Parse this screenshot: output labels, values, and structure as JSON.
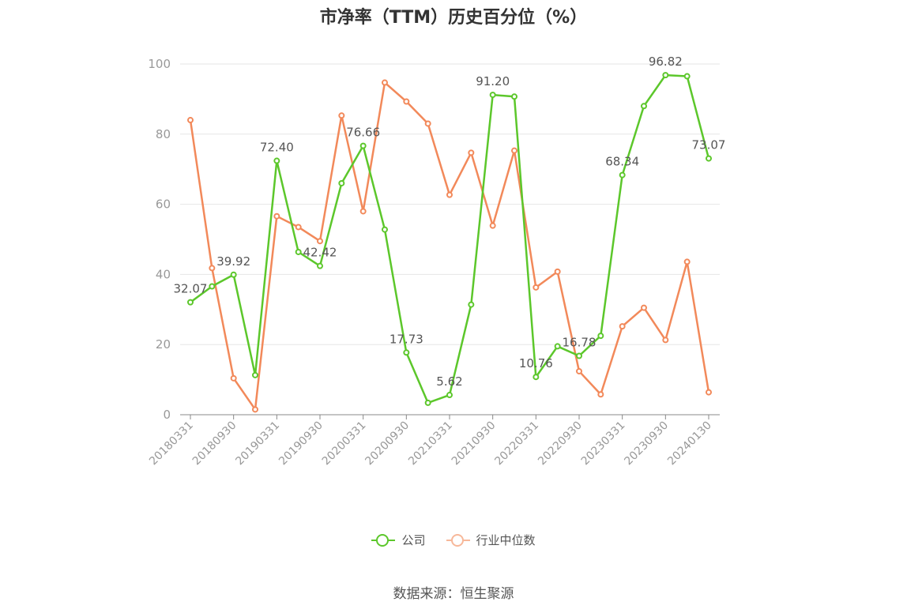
{
  "title": "市净率（TTM）历史百分位（%）",
  "source": "数据来源：恒生聚源",
  "legend": {
    "company": "公司",
    "industry": "行业中位数"
  },
  "colors": {
    "company": "#5cc72b",
    "industry": "#f2895a",
    "industry_legend": "#f7b89a",
    "grid": "#e6e6e6",
    "axis": "#888888"
  },
  "chart_data": {
    "type": "line",
    "title": "市净率（TTM）历史百分位（%）",
    "ylim": [
      0,
      100
    ],
    "y_ticks": [
      "0",
      "20",
      "40",
      "60",
      "80",
      "100"
    ],
    "grid": true,
    "legend_position": "bottom-center",
    "x": [
      "20180331",
      "20180630",
      "20180930",
      "20181231",
      "20190331",
      "20190630",
      "20190930",
      "20191231",
      "20200331",
      "20200630",
      "20200930",
      "20201231",
      "20210331",
      "20210630",
      "20210930",
      "20211231",
      "20220331",
      "20220630",
      "20220930",
      "20221231",
      "20230331",
      "20230630",
      "20230930",
      "20231231",
      "20240130"
    ],
    "x_tick_labels": [
      "20180331",
      "20180930",
      "20190331",
      "20190930",
      "20200331",
      "20200930",
      "20210331",
      "20210930",
      "20220331",
      "20220930",
      "20230331",
      "20230930",
      "20240130"
    ],
    "series": [
      {
        "name": "公司",
        "values": [
          32.07,
          36.6,
          39.92,
          11.3,
          72.4,
          46.4,
          42.42,
          66.0,
          76.66,
          52.8,
          17.73,
          3.4,
          5.62,
          31.4,
          91.2,
          90.7,
          10.76,
          19.5,
          16.78,
          22.5,
          68.34,
          88.0,
          96.82,
          96.5,
          73.07
        ],
        "labels": [
          "32.07",
          "",
          "39.92",
          "",
          "72.40",
          "",
          "42.42",
          "",
          "76.66",
          "",
          "17.73",
          "",
          "5.62",
          "",
          "91.20",
          "",
          "10.76",
          "",
          "16.78",
          "",
          "68.34",
          "",
          "96.82",
          "",
          "73.07"
        ]
      },
      {
        "name": "行业中位数",
        "values": [
          84.0,
          41.8,
          10.4,
          1.5,
          56.6,
          53.5,
          49.5,
          85.3,
          58.0,
          94.7,
          89.3,
          83.0,
          62.7,
          74.7,
          53.9,
          75.3,
          36.3,
          40.8,
          12.4,
          5.8,
          25.2,
          30.5,
          21.3,
          43.6,
          6.4
        ]
      }
    ]
  }
}
